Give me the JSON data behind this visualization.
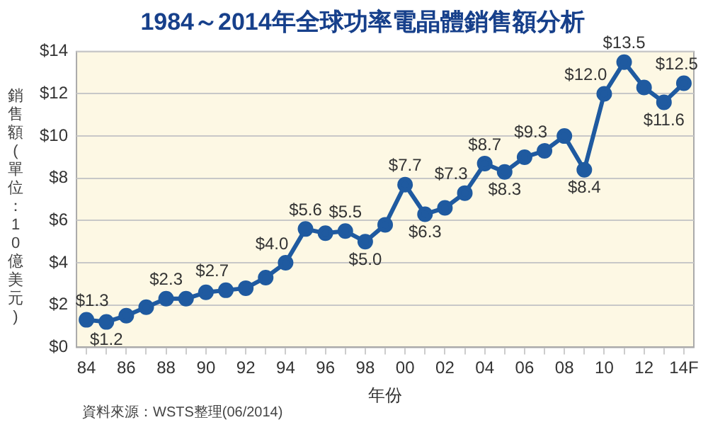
{
  "chart_data": {
    "type": "line",
    "title": "1984～2014年全球功率電晶體銷售額分析",
    "xlabel": "年份",
    "ylabel": "銷售額(單位：10億美元)",
    "categories": [
      "84",
      null,
      "86",
      null,
      "88",
      null,
      "90",
      null,
      "92",
      null,
      "94",
      null,
      "96",
      null,
      "98",
      null,
      "00",
      null,
      "02",
      null,
      "04",
      null,
      "06",
      null,
      "08",
      null,
      "10",
      null,
      "12",
      null,
      "14F"
    ],
    "series": [
      {
        "color": "#1f5aa0",
        "values": [
          1.3,
          1.2,
          1.5,
          1.9,
          2.3,
          2.3,
          2.6,
          2.7,
          2.8,
          3.3,
          4.0,
          5.6,
          5.4,
          5.5,
          5.0,
          5.8,
          7.7,
          6.3,
          6.6,
          7.3,
          8.7,
          8.3,
          9.0,
          9.3,
          10.0,
          8.4,
          12.0,
          13.5,
          12.3,
          11.6,
          12.5
        ],
        "value_labels": [
          "$1.3",
          "$1.2",
          null,
          null,
          "$2.3",
          null,
          null,
          "$2.7",
          null,
          null,
          "$4.0",
          "$5.6",
          null,
          "$5.5",
          "$5.0",
          null,
          "$7.7",
          "$6.3",
          null,
          "$7.3",
          "$8.7",
          "$8.3",
          null,
          "$9.3",
          null,
          "$8.4",
          "$12.0",
          "$13.5",
          null,
          "$11.6",
          "$12.5"
        ]
      }
    ],
    "ylim": [
      0,
      14
    ],
    "yticks": [
      {
        "value": 0,
        "label": "$0"
      },
      {
        "value": 2,
        "label": "$2"
      },
      {
        "value": 4,
        "label": "$4"
      },
      {
        "value": 6,
        "label": "$6"
      },
      {
        "value": 8,
        "label": "$8"
      },
      {
        "value": 10,
        "label": "$10"
      },
      {
        "value": 12,
        "label": "$12"
      },
      {
        "value": 14,
        "label": "$14"
      }
    ],
    "grid": "y",
    "legend": false,
    "marker": "circle",
    "line_style": "solid",
    "annotations": [
      "資料來源：WSTS整理(06/2014)"
    ]
  }
}
